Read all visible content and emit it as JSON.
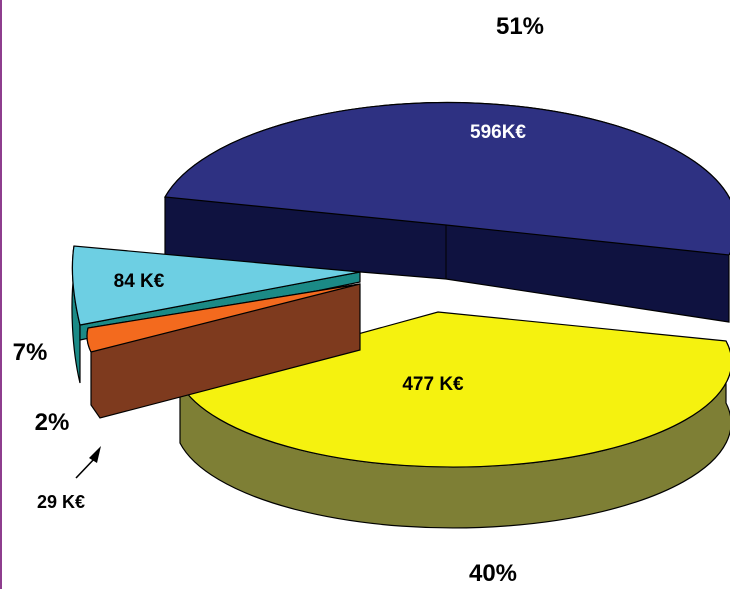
{
  "chart_data": {
    "type": "pie",
    "style": "3d-exploded",
    "slices": [
      {
        "value": 596,
        "value_label": "596K€",
        "percent_label": "51%",
        "top_color": "#2E3182",
        "side_color": "#0F1240",
        "value_label_color": "#ffffff"
      },
      {
        "value": 477,
        "value_label": "477 K€",
        "percent_label": "40%",
        "top_color": "#F5F20F",
        "side_color": "#7E7F35",
        "value_label_color": "#000000"
      },
      {
        "value": 29,
        "value_label": "29 K€",
        "percent_label": "2%",
        "top_color": "#F36A1E",
        "side_color": "#7E3A1E",
        "value_label_color": "#000000"
      },
      {
        "value": 84,
        "value_label": "84 K€",
        "percent_label": "7%",
        "top_color": "#6DCFE3",
        "side_color": "#1B8A86",
        "value_label_color": "#000000"
      }
    ],
    "outline_color": "#000000",
    "left_border_color": "#8E3D8E"
  }
}
